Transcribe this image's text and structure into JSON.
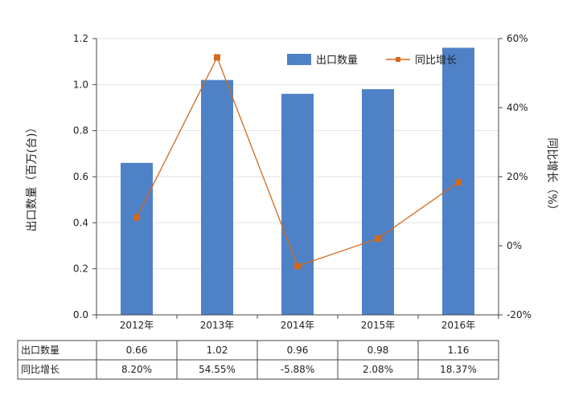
{
  "chart_data": {
    "type": "bar+line",
    "categories": [
      "2012年",
      "2013年",
      "2014年",
      "2015年",
      "2016年"
    ],
    "series": [
      {
        "name": "出口数量",
        "type": "bar",
        "axis": "left",
        "values": [
          0.66,
          1.02,
          0.96,
          0.98,
          1.16
        ],
        "color": "#4f81c7"
      },
      {
        "name": "同比增长",
        "type": "line",
        "axis": "right",
        "values": [
          8.2,
          54.55,
          -5.88,
          2.08,
          18.37
        ],
        "color": "#d2691e"
      }
    ],
    "ylabel_left": "出口数量（百万(台)）",
    "ylabel_right": "同比增长（%）",
    "ylim_left": [
      0,
      1.2
    ],
    "yticks_left": [
      "0.0",
      "0.2",
      "0.4",
      "0.6",
      "0.8",
      "1.0",
      "1.2"
    ],
    "ylim_right": [
      -20,
      60
    ],
    "yticks_right": [
      "-20%",
      "0%",
      "20%",
      "40%",
      "60%"
    ],
    "grid": true,
    "legend_position": "top-right",
    "table": {
      "rows": [
        {
          "label": "出口数量",
          "cells": [
            "0.66",
            "1.02",
            "0.96",
            "0.98",
            "1.16"
          ]
        },
        {
          "label": "同比增长",
          "cells": [
            "8.20%",
            "54.55%",
            "-5.88%",
            "2.08%",
            "18.37%"
          ]
        }
      ]
    }
  }
}
